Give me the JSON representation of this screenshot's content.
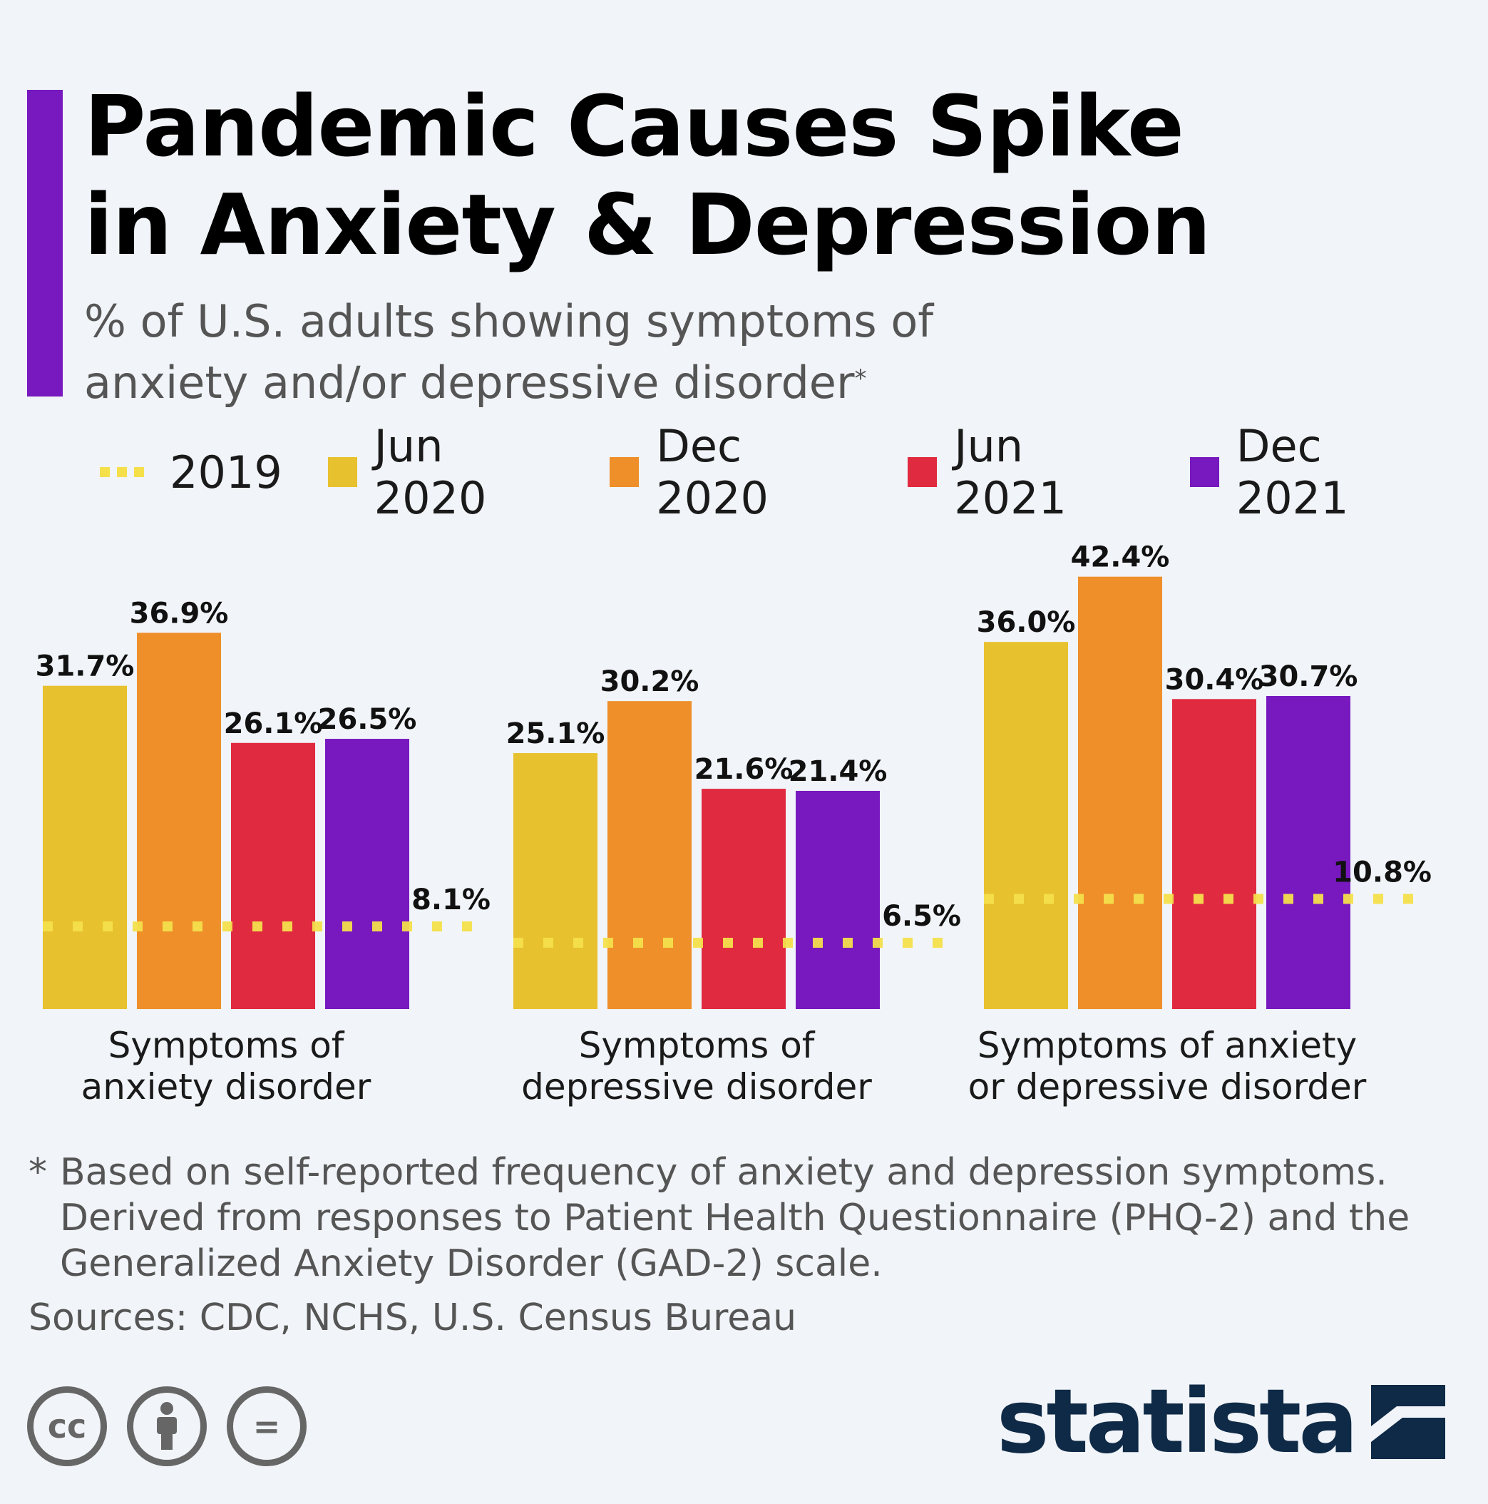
{
  "header": {
    "title_line1": "Pandemic Causes Spike",
    "title_line2": "in Anxiety & Depression",
    "subtitle_line1": "% of U.S. adults showing symptoms of",
    "subtitle_line2": "anxiety and/or depressive disorder",
    "subtitle_mark": "*"
  },
  "legend": {
    "items": [
      {
        "label": "2019",
        "style": "dashed",
        "color": "#f5e04c"
      },
      {
        "label": "Jun 2020",
        "style": "box",
        "color": "#e8c12e"
      },
      {
        "label": "Dec 2020",
        "style": "box",
        "color": "#ee8f2a"
      },
      {
        "label": "Jun 2021",
        "style": "box",
        "color": "#e02a40"
      },
      {
        "label": "Dec 2021",
        "style": "box",
        "color": "#7719bf"
      }
    ]
  },
  "chart_data": {
    "type": "bar",
    "categories": [
      [
        "Symptoms of",
        "anxiety disorder"
      ],
      [
        "Symptoms of",
        "depressive disorder"
      ],
      [
        "Symptoms of anxiety",
        "or depressive disorder"
      ]
    ],
    "series": [
      {
        "name": "Jun 2020",
        "color": "#e8c12e",
        "values": [
          31.7,
          25.1,
          36.0
        ],
        "labels": [
          "31.7%",
          "25.1%",
          "36.0%"
        ]
      },
      {
        "name": "Dec 2020",
        "color": "#ee8f2a",
        "values": [
          36.9,
          30.2,
          42.4
        ],
        "labels": [
          "36.9%",
          "30.2%",
          "42.4%"
        ]
      },
      {
        "name": "Jun 2021",
        "color": "#e02a40",
        "values": [
          26.1,
          21.6,
          30.4
        ],
        "labels": [
          "26.1%",
          "21.6%",
          "30.4%"
        ]
      },
      {
        "name": "Dec 2021",
        "color": "#7719bf",
        "values": [
          26.5,
          21.4,
          30.7
        ],
        "labels": [
          "26.5%",
          "21.4%",
          "30.7%"
        ]
      }
    ],
    "baseline": {
      "name": "2019",
      "color": "#f5e04c",
      "values": [
        8.1,
        6.5,
        10.8
      ],
      "labels": [
        "8.1%",
        "6.5%",
        "10.8%"
      ]
    },
    "ylim": [
      0,
      45
    ],
    "grid": false
  },
  "notes": {
    "star": "*",
    "footnote_line1": "Based on self-reported frequency of anxiety and depression symptoms.",
    "footnote_line2": "Derived from responses to Patient Health Questionnaire (PHQ-2) and the",
    "footnote_line3": "Generalized Anxiety Disorder (GAD-2) scale.",
    "source": "Sources: CDC, NCHS, U.S. Census Bureau"
  },
  "license_icons": [
    {
      "icon": "cc-icon",
      "glyph": "cc"
    },
    {
      "icon": "by-icon",
      "glyph": ""
    },
    {
      "icon": "nd-icon",
      "glyph": "="
    }
  ],
  "brand": {
    "name": "statista",
    "color": "#0f2a47",
    "icon": "statista-logo-icon"
  },
  "colors": {
    "accent": "#7719bf",
    "background": "#f1f4f8"
  }
}
